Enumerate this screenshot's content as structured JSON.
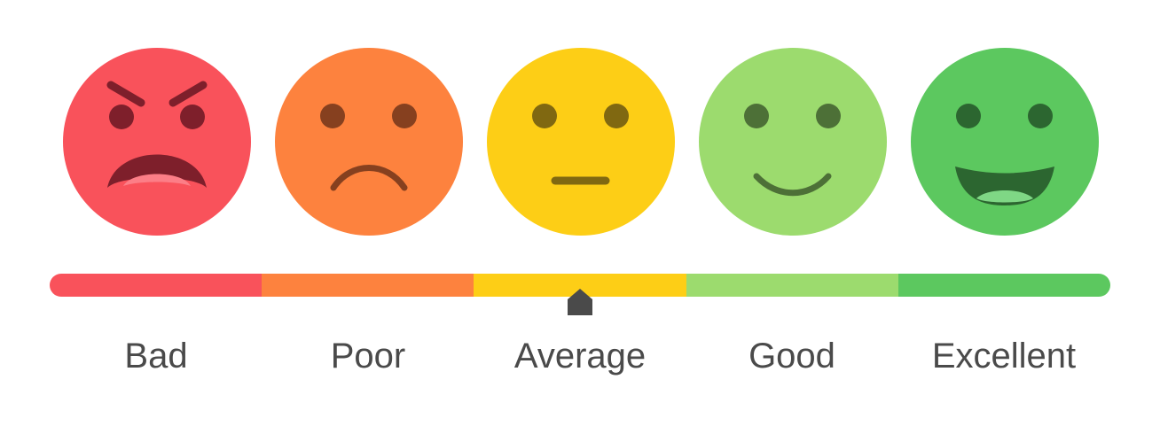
{
  "rating_scale": {
    "levels": [
      {
        "label": "Bad",
        "face": "angry-face-icon",
        "color": "#f9525b"
      },
      {
        "label": "Poor",
        "face": "sad-face-icon",
        "color": "#fd823e"
      },
      {
        "label": "Average",
        "face": "neutral-face-icon",
        "color": "#fdce16"
      },
      {
        "label": "Good",
        "face": "smiling-face-icon",
        "color": "#9cdb6e"
      },
      {
        "label": "Excellent",
        "face": "grinning-face-icon",
        "color": "#5cc85f"
      }
    ],
    "selected_level": "Average",
    "marker_position": 0.5
  }
}
